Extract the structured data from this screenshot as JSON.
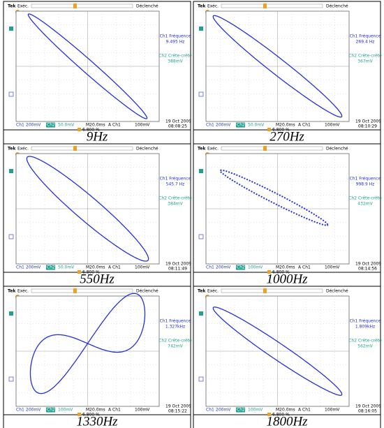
{
  "common": {
    "tek": "Tek",
    "run": "Exéc.",
    "trig": "Déclenché",
    "ch1_freq_label": "Ch1 Fréquence",
    "ch2_pp_label": "Ch2 Crête-crête",
    "ch1": "Ch1",
    "ch1_scale": "200mV",
    "ch2": "Ch2",
    "timebase": "M20.0ms",
    "trig_source": "A  Ch1",
    "trig_level": "100mV",
    "position": "6.800 %",
    "date": "19 Oct 2009"
  },
  "panels": [
    {
      "freq": "9.495 Hz",
      "pp": "388mV",
      "ch2_scale": "50.0mV",
      "time": "08:08:25",
      "caption": "9Hz"
    },
    {
      "freq": "269.4 Hz",
      "pp": "367mV",
      "ch2_scale": "50.0mV",
      "time": "08:10:29",
      "caption": "270Hz"
    },
    {
      "freq": "545.7 Hz",
      "pp": "384mV",
      "ch2_scale": "50.0mV",
      "time": "08:11:49",
      "caption": "550Hz"
    },
    {
      "freq": "998.9 Hz",
      "pp": "432mV",
      "ch2_scale": "100mV",
      "time": "08:14:56",
      "caption": "1000Hz"
    },
    {
      "freq": "1.327kHz",
      "pp": "742mV",
      "ch2_scale": "100mV",
      "time": "08:15:22",
      "caption": "1330Hz"
    },
    {
      "freq": "1.809kHz",
      "pp": "562mV",
      "ch2_scale": "100mV",
      "time": "08:16:05",
      "caption": "1800Hz"
    }
  ]
}
